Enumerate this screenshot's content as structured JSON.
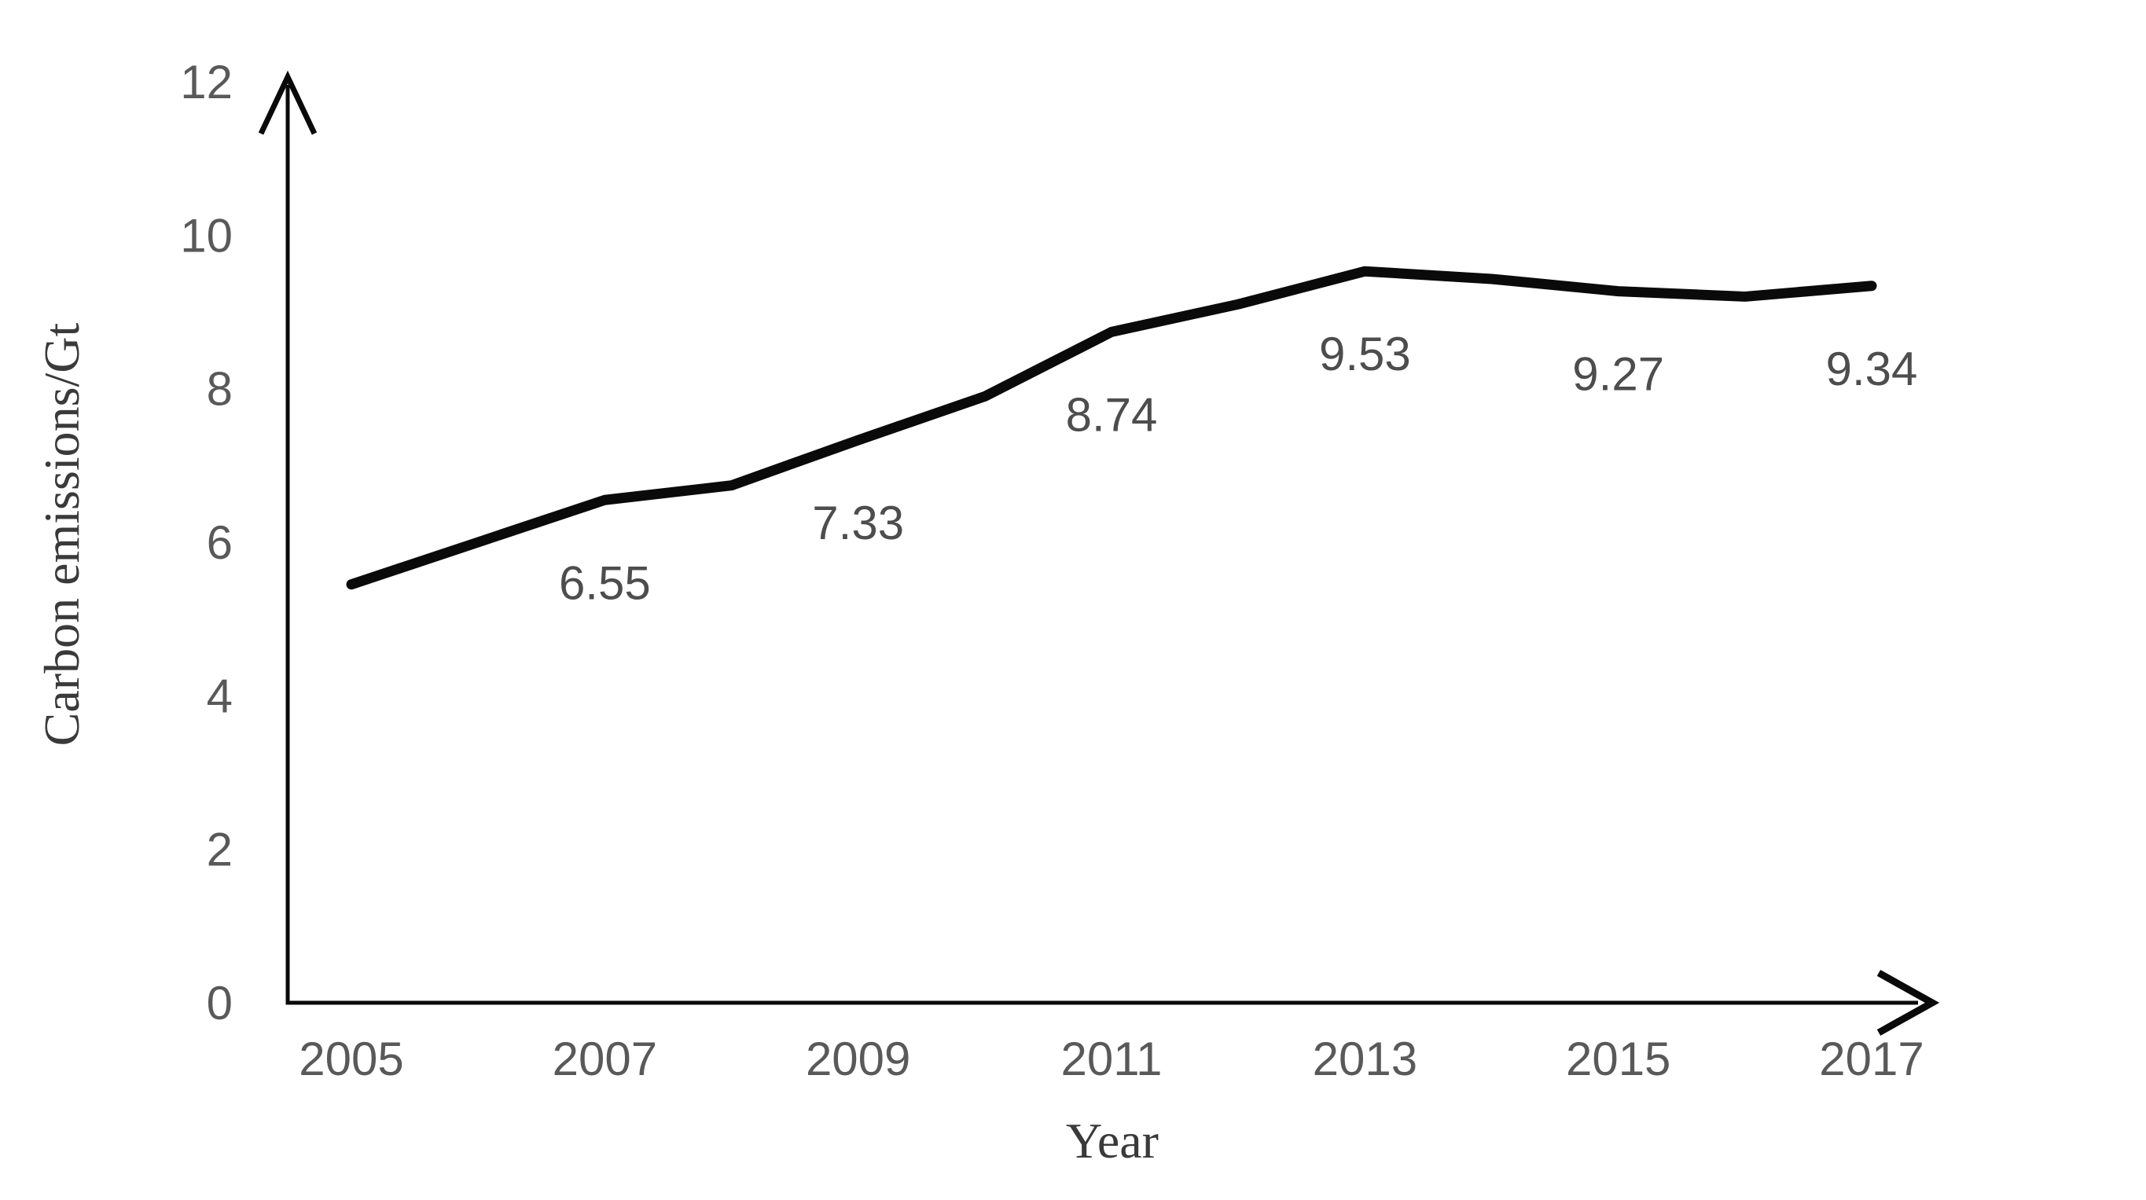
{
  "chart": {
    "xlabel": "Year",
    "ylabel": "Carbon emissions/Gt"
  },
  "chart_data": {
    "type": "line",
    "title": "",
    "xlabel": "Year",
    "ylabel": "Carbon emissions/Gt",
    "x": [
      2005,
      2006,
      2007,
      2008,
      2009,
      2010,
      2011,
      2012,
      2013,
      2014,
      2015,
      2016,
      2017
    ],
    "values": [
      5.45,
      6.0,
      6.55,
      6.74,
      7.33,
      7.9,
      8.74,
      9.1,
      9.53,
      9.43,
      9.27,
      9.2,
      9.34
    ],
    "data_labels": [
      {
        "x": 2007,
        "text": "6.55"
      },
      {
        "x": 2009,
        "text": "7.33"
      },
      {
        "x": 2011,
        "text": "8.74"
      },
      {
        "x": 2013,
        "text": "9.53"
      },
      {
        "x": 2015,
        "text": "9.27"
      },
      {
        "x": 2017,
        "text": "9.34"
      }
    ],
    "x_tick_labels": [
      "2005",
      "2007",
      "2009",
      "2011",
      "2013",
      "2015",
      "2017"
    ],
    "x_tick_values": [
      2005,
      2007,
      2009,
      2011,
      2013,
      2015,
      2017
    ],
    "y_tick_labels": [
      "0",
      "2",
      "4",
      "6",
      "8",
      "10",
      "12"
    ],
    "y_tick_values": [
      0,
      2,
      4,
      6,
      8,
      10,
      12
    ],
    "ylim": [
      0,
      12
    ],
    "grid": false,
    "legend": false,
    "colors": {
      "line": "#0a0a0a",
      "axis": "#0a0a0a",
      "tick_labels": "#595959",
      "data_labels": "#4d4d4d",
      "axis_titles": "#3a3a3a"
    }
  }
}
